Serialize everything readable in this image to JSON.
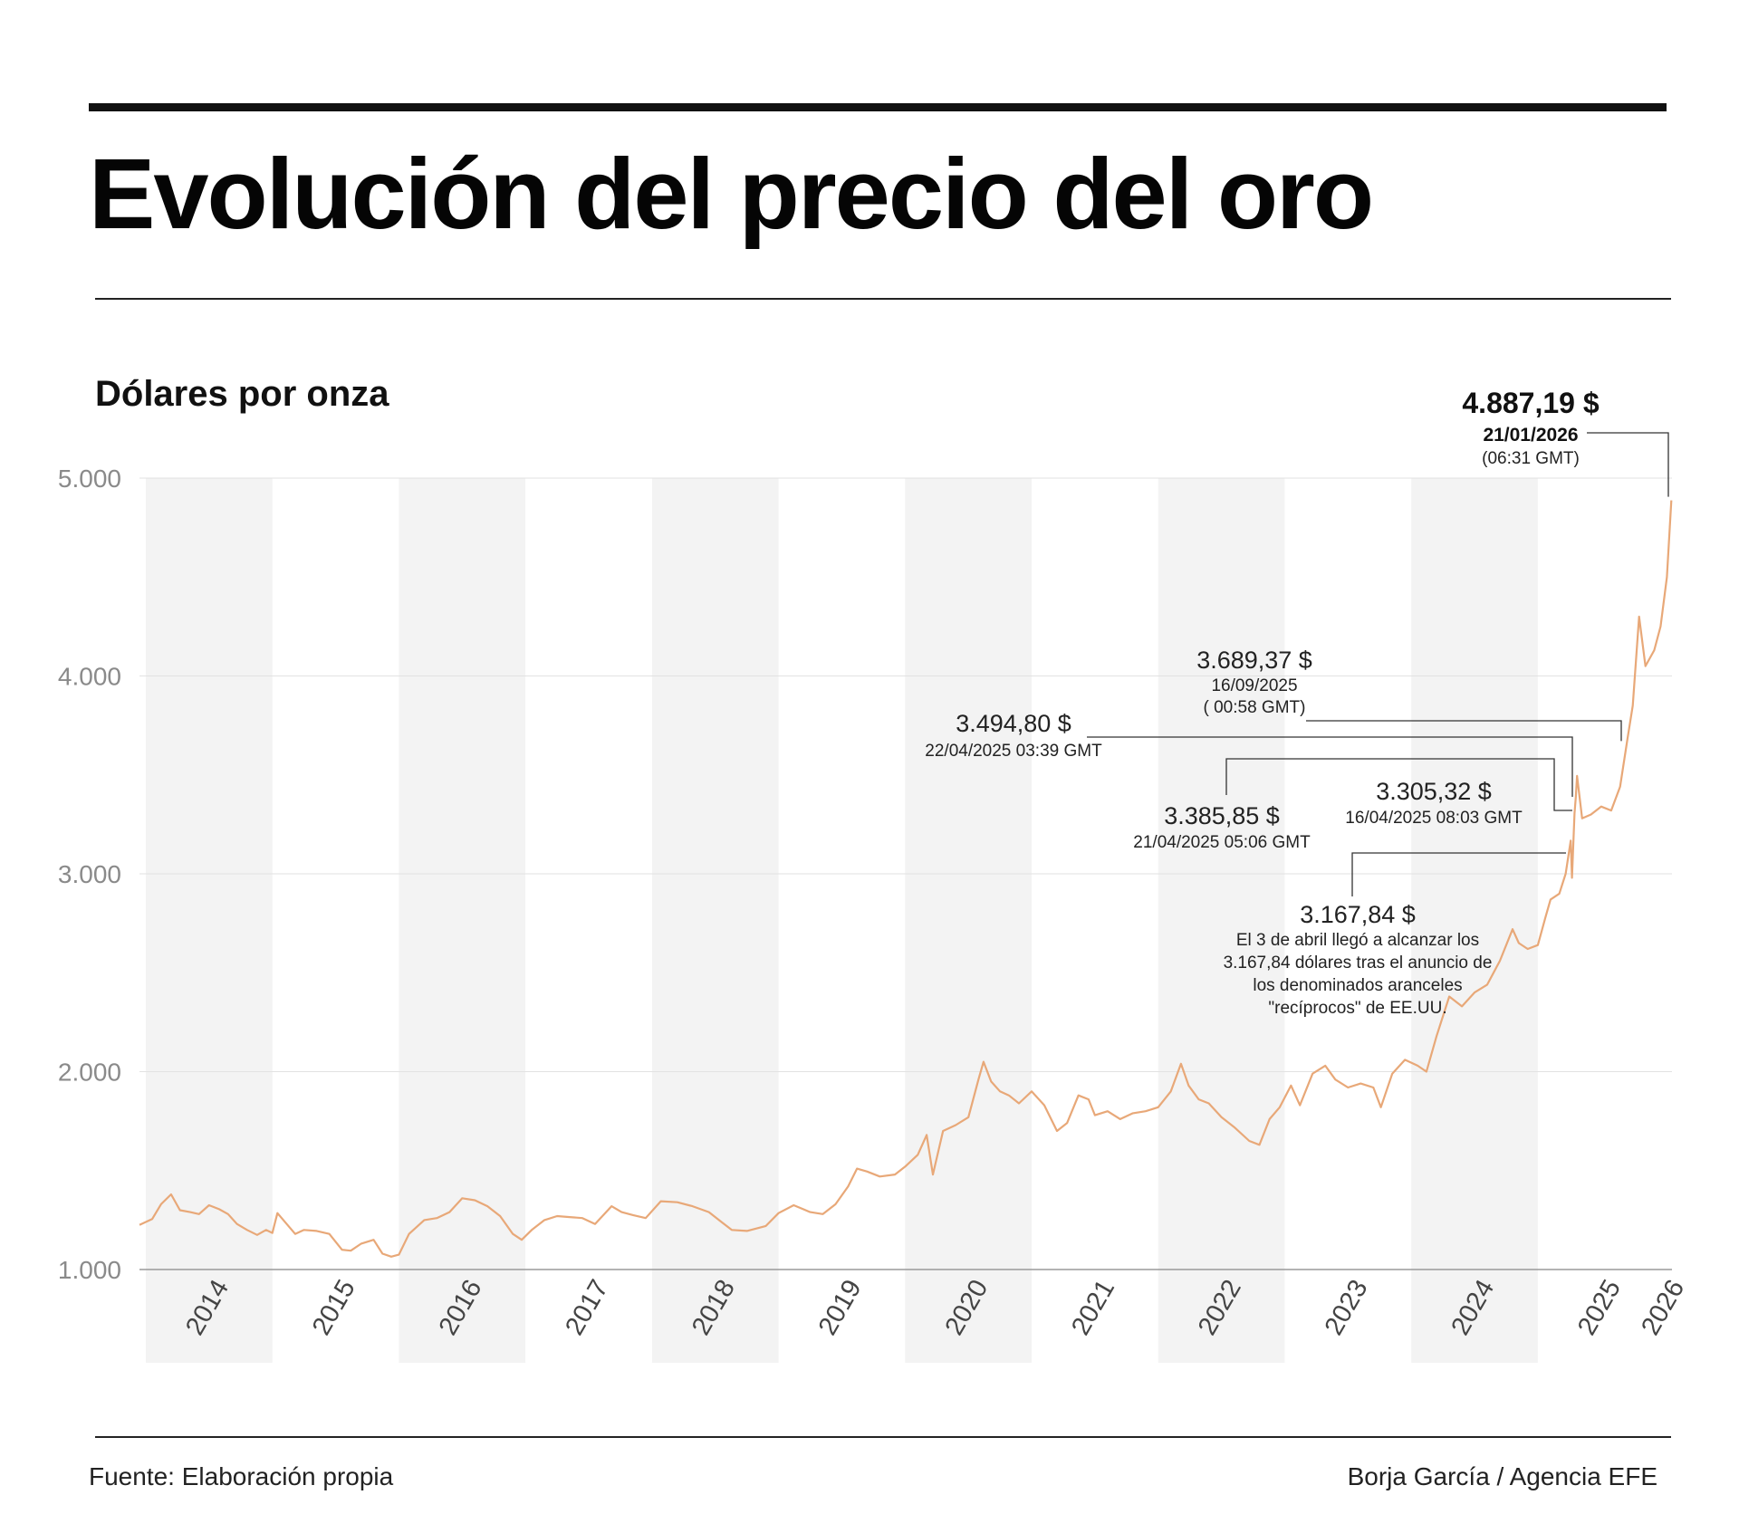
{
  "header": {
    "title": "Evolución del precio del oro",
    "subtitle": "Dólares por onza"
  },
  "footer": {
    "source": "Fuente: Elaboración propia",
    "credit": "Borja García / Agencia EFE"
  },
  "colors": {
    "line": "#e8a878",
    "band": "#f3f3f3",
    "grid": "#e2e2e2",
    "text": "#111111"
  },
  "chart_data": {
    "type": "line",
    "ylabel": "Dólares por onza",
    "ylim": [
      1000,
      5000
    ],
    "xlim": [
      2013.95,
      2026.06
    ],
    "yticks": [
      {
        "value": 1000,
        "label": "1.000"
      },
      {
        "value": 2000,
        "label": "2.000"
      },
      {
        "value": 3000,
        "label": "3.000"
      },
      {
        "value": 4000,
        "label": "4.000"
      },
      {
        "value": 5000,
        "label": "5.000"
      }
    ],
    "xticks": [
      "2014",
      "2015",
      "2016",
      "2017",
      "2018",
      "2019",
      "2020",
      "2021",
      "2022",
      "2023",
      "2024",
      "2025",
      "2026"
    ],
    "grid": true,
    "alternating_year_bands": true,
    "series": [
      {
        "points": [
          [
            2013.95,
            1225
          ],
          [
            2014.05,
            1255
          ],
          [
            2014.12,
            1330
          ],
          [
            2014.2,
            1380
          ],
          [
            2014.27,
            1300
          ],
          [
            2014.35,
            1290
          ],
          [
            2014.42,
            1280
          ],
          [
            2014.5,
            1325
          ],
          [
            2014.58,
            1305
          ],
          [
            2014.65,
            1280
          ],
          [
            2014.72,
            1230
          ],
          [
            2014.8,
            1200
          ],
          [
            2014.88,
            1175
          ],
          [
            2014.95,
            1200
          ],
          [
            2015.0,
            1185
          ],
          [
            2015.04,
            1285
          ],
          [
            2015.1,
            1240
          ],
          [
            2015.18,
            1180
          ],
          [
            2015.25,
            1200
          ],
          [
            2015.35,
            1195
          ],
          [
            2015.45,
            1180
          ],
          [
            2015.55,
            1100
          ],
          [
            2015.62,
            1095
          ],
          [
            2015.7,
            1130
          ],
          [
            2015.8,
            1150
          ],
          [
            2015.87,
            1080
          ],
          [
            2015.94,
            1065
          ],
          [
            2016.0,
            1075
          ],
          [
            2016.08,
            1180
          ],
          [
            2016.2,
            1250
          ],
          [
            2016.3,
            1260
          ],
          [
            2016.4,
            1290
          ],
          [
            2016.5,
            1360
          ],
          [
            2016.6,
            1350
          ],
          [
            2016.7,
            1320
          ],
          [
            2016.8,
            1270
          ],
          [
            2016.9,
            1180
          ],
          [
            2016.97,
            1150
          ],
          [
            2017.05,
            1200
          ],
          [
            2017.15,
            1250
          ],
          [
            2017.25,
            1270
          ],
          [
            2017.35,
            1265
          ],
          [
            2017.45,
            1260
          ],
          [
            2017.55,
            1230
          ],
          [
            2017.68,
            1320
          ],
          [
            2017.76,
            1290
          ],
          [
            2017.85,
            1275
          ],
          [
            2017.95,
            1260
          ],
          [
            2018.07,
            1345
          ],
          [
            2018.2,
            1340
          ],
          [
            2018.32,
            1320
          ],
          [
            2018.45,
            1290
          ],
          [
            2018.55,
            1240
          ],
          [
            2018.63,
            1200
          ],
          [
            2018.75,
            1195
          ],
          [
            2018.9,
            1220
          ],
          [
            2019.0,
            1285
          ],
          [
            2019.12,
            1325
          ],
          [
            2019.25,
            1290
          ],
          [
            2019.35,
            1280
          ],
          [
            2019.45,
            1330
          ],
          [
            2019.55,
            1420
          ],
          [
            2019.62,
            1510
          ],
          [
            2019.7,
            1495
          ],
          [
            2019.8,
            1470
          ],
          [
            2019.92,
            1480
          ],
          [
            2020.0,
            1520
          ],
          [
            2020.1,
            1580
          ],
          [
            2020.17,
            1680
          ],
          [
            2020.22,
            1480
          ],
          [
            2020.3,
            1700
          ],
          [
            2020.4,
            1730
          ],
          [
            2020.5,
            1770
          ],
          [
            2020.58,
            1960
          ],
          [
            2020.62,
            2050
          ],
          [
            2020.68,
            1950
          ],
          [
            2020.75,
            1900
          ],
          [
            2020.82,
            1880
          ],
          [
            2020.9,
            1840
          ],
          [
            2021.0,
            1900
          ],
          [
            2021.1,
            1830
          ],
          [
            2021.2,
            1700
          ],
          [
            2021.28,
            1740
          ],
          [
            2021.37,
            1880
          ],
          [
            2021.45,
            1860
          ],
          [
            2021.5,
            1780
          ],
          [
            2021.6,
            1800
          ],
          [
            2021.7,
            1760
          ],
          [
            2021.8,
            1790
          ],
          [
            2021.9,
            1800
          ],
          [
            2022.0,
            1820
          ],
          [
            2022.1,
            1900
          ],
          [
            2022.18,
            2040
          ],
          [
            2022.24,
            1930
          ],
          [
            2022.32,
            1860
          ],
          [
            2022.4,
            1840
          ],
          [
            2022.5,
            1770
          ],
          [
            2022.6,
            1720
          ],
          [
            2022.72,
            1650
          ],
          [
            2022.8,
            1630
          ],
          [
            2022.88,
            1760
          ],
          [
            2022.96,
            1820
          ],
          [
            2023.05,
            1930
          ],
          [
            2023.12,
            1830
          ],
          [
            2023.22,
            1990
          ],
          [
            2023.32,
            2030
          ],
          [
            2023.4,
            1960
          ],
          [
            2023.5,
            1920
          ],
          [
            2023.6,
            1940
          ],
          [
            2023.7,
            1920
          ],
          [
            2023.76,
            1820
          ],
          [
            2023.85,
            1990
          ],
          [
            2023.95,
            2060
          ],
          [
            2024.05,
            2030
          ],
          [
            2024.12,
            2000
          ],
          [
            2024.2,
            2180
          ],
          [
            2024.3,
            2380
          ],
          [
            2024.4,
            2330
          ],
          [
            2024.5,
            2400
          ],
          [
            2024.6,
            2440
          ],
          [
            2024.7,
            2560
          ],
          [
            2024.8,
            2720
          ],
          [
            2024.85,
            2650
          ],
          [
            2024.92,
            2620
          ],
          [
            2025.0,
            2640
          ],
          [
            2025.06,
            2780
          ],
          [
            2025.1,
            2870
          ],
          [
            2025.17,
            2900
          ],
          [
            2025.22,
            3000
          ],
          [
            2025.26,
            3167.84
          ],
          [
            2025.27,
            2980
          ],
          [
            2025.29,
            3305.32
          ],
          [
            2025.3,
            3385.85
          ],
          [
            2025.31,
            3494.8
          ],
          [
            2025.35,
            3280
          ],
          [
            2025.42,
            3300
          ],
          [
            2025.5,
            3340
          ],
          [
            2025.58,
            3320
          ],
          [
            2025.65,
            3440
          ],
          [
            2025.71,
            3689.37
          ],
          [
            2025.75,
            3850
          ],
          [
            2025.8,
            4300
          ],
          [
            2025.85,
            4050
          ],
          [
            2025.92,
            4130
          ],
          [
            2025.97,
            4250
          ],
          [
            2026.02,
            4500
          ],
          [
            2026.055,
            4887.19
          ]
        ]
      }
    ],
    "annotations": [
      {
        "value": "4.887,19 $",
        "date": "21/01/2026",
        "time": "(06:31 GMT)",
        "x": 2026.055,
        "y": 4887.19
      },
      {
        "value": "3.689,37 $",
        "date": "16/09/2025",
        "time": "( 00:58 GMT)",
        "x": 2025.71,
        "y": 3689.37
      },
      {
        "value": "3.494,80 $",
        "date": "22/04/2025 03:39 GMT",
        "x": 2025.31,
        "y": 3494.8
      },
      {
        "value": "3.385,85 $",
        "date": "21/04/2025 05:06 GMT",
        "x": 2025.3,
        "y": 3385.85
      },
      {
        "value": "3.305,32 $",
        "date": "16/04/2025 08:03 GMT",
        "x": 2025.29,
        "y": 3305.32
      },
      {
        "value": "3.167,84 $",
        "note": [
          "El 3 de abril llegó a alcanzar los",
          "3.167,84 dólares tras el anuncio de",
          "los denominados aranceles",
          "\"recíprocos\" de EE.UU."
        ],
        "x": 2025.26,
        "y": 3167.84
      }
    ]
  }
}
